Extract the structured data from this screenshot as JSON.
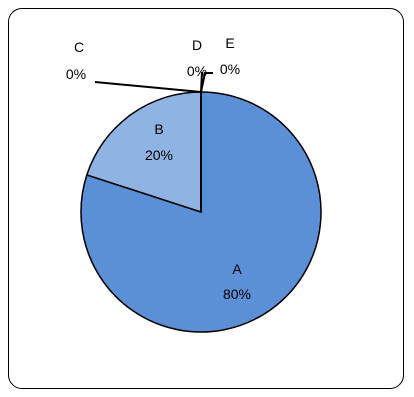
{
  "chart_data": {
    "type": "pie",
    "categories": [
      "A",
      "B",
      "C",
      "D",
      "E"
    ],
    "values": [
      80,
      20,
      0,
      0,
      0
    ],
    "percent_labels": [
      "80%",
      "20%",
      "0%",
      "0%",
      "0%"
    ],
    "title": "",
    "legend": "none",
    "colors": [
      "#5b8fd6",
      "#8fb3e3",
      "#b7cdee",
      "#d4e1f5",
      "#e9f0fa"
    ],
    "outline_color": "#000000"
  }
}
